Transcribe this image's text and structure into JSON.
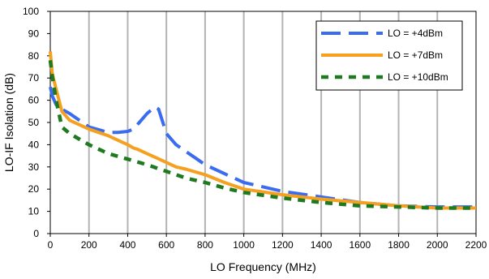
{
  "chart_data": {
    "type": "line",
    "title": "",
    "xlabel": "LO Frequency (MHz)",
    "ylabel": "LO-IF Isolation (dB)",
    "xlim": [
      0,
      2200
    ],
    "ylim": [
      0,
      100
    ],
    "xticks": [
      0,
      200,
      400,
      600,
      800,
      1000,
      1200,
      1400,
      1600,
      1800,
      2000,
      2200
    ],
    "yticks": [
      0,
      10,
      20,
      30,
      40,
      50,
      60,
      70,
      80,
      90,
      100
    ],
    "grid": "vertical",
    "legend_position": "top-right",
    "series": [
      {
        "name": "LO = +4dBm",
        "color": "#3b6cf0",
        "style": "long-dash",
        "x": [
          0,
          10,
          30,
          60,
          100,
          200,
          300,
          350,
          400,
          430,
          460,
          500,
          540,
          560,
          600,
          650,
          700,
          750,
          800,
          1000,
          1200,
          1400,
          1600,
          1800,
          2000,
          2200
        ],
        "y": [
          66,
          62,
          58,
          56,
          54,
          48,
          45.5,
          45.5,
          46,
          47,
          50,
          54,
          57,
          56,
          45,
          40,
          37,
          34,
          31,
          23,
          19,
          16.5,
          14,
          12.5,
          12,
          12
        ]
      },
      {
        "name": "LO = +7dBm",
        "color": "#f5a020",
        "style": "solid",
        "x": [
          0,
          10,
          30,
          60,
          100,
          200,
          300,
          350,
          400,
          430,
          450,
          500,
          550,
          600,
          650,
          700,
          800,
          900,
          1000,
          1200,
          1400,
          1600,
          1800,
          2000,
          2200
        ],
        "y": [
          82,
          72,
          65,
          55,
          51,
          47,
          44,
          42,
          40,
          38.5,
          38,
          36,
          34,
          32,
          30,
          29,
          26.5,
          23,
          20,
          17.5,
          15.5,
          14,
          12.5,
          11.5,
          11.5
        ]
      },
      {
        "name": "LO = +10dBm",
        "color": "#1f7a1f",
        "style": "short-dash",
        "x": [
          0,
          10,
          30,
          60,
          100,
          200,
          300,
          400,
          500,
          600,
          700,
          800,
          900,
          1000,
          1200,
          1400,
          1600,
          1800,
          2000,
          2200
        ],
        "y": [
          78,
          71,
          60,
          48,
          45,
          40,
          36,
          33.5,
          31,
          28,
          25,
          23,
          20.5,
          18.5,
          16,
          14,
          12.5,
          12,
          11.5,
          11.5
        ]
      }
    ]
  }
}
